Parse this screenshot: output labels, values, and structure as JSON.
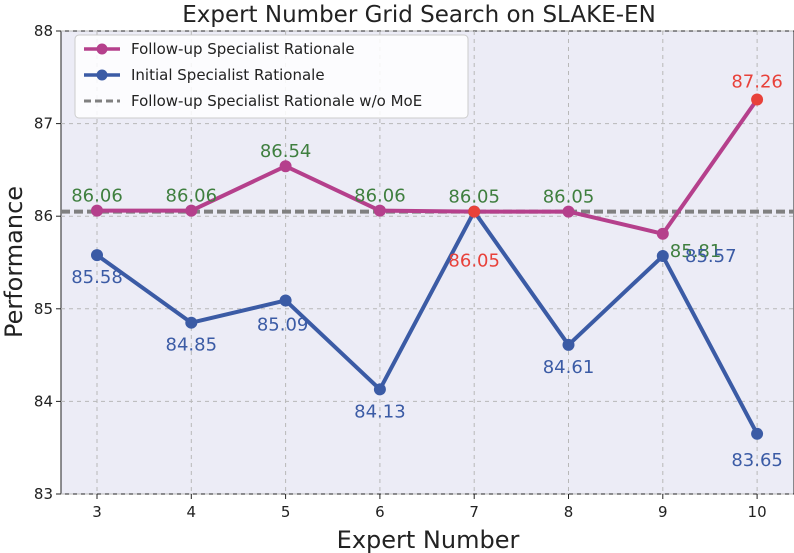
{
  "chart_data": {
    "type": "line",
    "title": "Expert Number Grid Search on SLAKE-EN",
    "xlabel": "Expert Number",
    "ylabel": "Performance",
    "x": [
      3,
      4,
      5,
      6,
      7,
      8,
      9,
      10
    ],
    "xticks": [
      "3",
      "4",
      "5",
      "6",
      "7",
      "8",
      "9",
      "10"
    ],
    "yticks": [
      "83",
      "84",
      "85",
      "86",
      "87",
      "88"
    ],
    "ylim": [
      83,
      88
    ],
    "grid": true,
    "legend_position": "top-left",
    "series": [
      {
        "name": "Follow-up Specialist Rationale",
        "color": "#b5408c",
        "values": [
          86.06,
          86.06,
          86.54,
          86.06,
          86.05,
          86.05,
          85.81,
          87.26
        ],
        "labels": [
          "86.06",
          "86.06",
          "86.54",
          "86.06",
          "86.05",
          "86.05",
          "85.81",
          "87.26"
        ]
      },
      {
        "name": "Initial Specialist Rationale",
        "color": "#3b5ba5",
        "values": [
          85.58,
          84.85,
          85.09,
          84.13,
          86.05,
          84.61,
          85.57,
          83.65
        ],
        "labels": [
          "85.58",
          "84.85",
          "85.09",
          "84.13",
          "86.05",
          "84.61",
          "85.57",
          "83.65"
        ]
      }
    ],
    "reference_line": {
      "name": "Follow-up Specialist Rationale w/o MoE",
      "value": 86.05,
      "color": "#808080",
      "style": "dashed"
    },
    "highlight_color": "#e8413a",
    "follow_label_color": "#3f7f3f",
    "initial_label_color": "#3b5ba5"
  }
}
